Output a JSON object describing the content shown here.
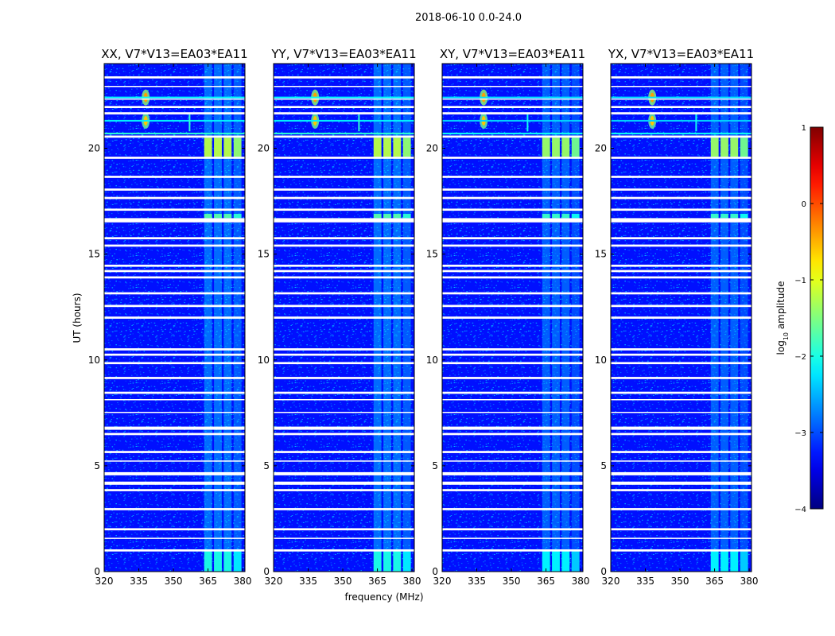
{
  "chart_data": {
    "type": "heatmap",
    "title": "2018-06-10 0.0-24.0",
    "xlabel": "frequency (MHz)",
    "ylabel": "UT (hours)",
    "xlim": [
      320,
      381
    ],
    "ylim": [
      0,
      24
    ],
    "xticks": [
      320,
      335,
      350,
      365,
      380
    ],
    "yticks": [
      0,
      5,
      10,
      15,
      20
    ],
    "colorbar": {
      "label": "log10 amplitude",
      "label_base": "log",
      "label_sub": "10",
      "label_rest": " amplitude",
      "range": [
        -4,
        1
      ],
      "ticks": [
        -4,
        -3,
        -2,
        -1,
        0,
        1
      ],
      "colormap": "jet"
    },
    "panels": [
      {
        "title": "XX, V7*V13=EA03*EA11"
      },
      {
        "title": "YY, V7*V13=EA03*EA11"
      },
      {
        "title": "XY, V7*V13=EA03*EA11"
      },
      {
        "title": "YX, V7*V13=EA03*EA11"
      }
    ],
    "flagged_ut_bands": [
      [
        0.95,
        1.05
      ],
      [
        1.55,
        1.6
      ],
      [
        1.95,
        2.05
      ],
      [
        2.9,
        3.0
      ],
      [
        3.8,
        3.9
      ],
      [
        4.1,
        4.25
      ],
      [
        4.55,
        4.7
      ],
      [
        5.2,
        5.25
      ],
      [
        5.6,
        5.7
      ],
      [
        6.45,
        6.55
      ],
      [
        6.7,
        6.85
      ],
      [
        7.5,
        7.55
      ],
      [
        8.1,
        8.15
      ],
      [
        8.4,
        8.5
      ],
      [
        9.1,
        9.2
      ],
      [
        9.8,
        9.9
      ],
      [
        10.2,
        10.3
      ],
      [
        10.45,
        10.55
      ],
      [
        11.95,
        12.05
      ],
      [
        12.5,
        12.6
      ],
      [
        13.1,
        13.2
      ],
      [
        13.85,
        13.95
      ],
      [
        14.15,
        14.25
      ],
      [
        14.4,
        14.5
      ],
      [
        15.35,
        15.45
      ],
      [
        15.7,
        15.8
      ],
      [
        16.5,
        16.7
      ],
      [
        17.05,
        17.15
      ],
      [
        17.6,
        17.7
      ],
      [
        18.0,
        18.1
      ],
      [
        18.6,
        18.7
      ],
      [
        19.5,
        19.6
      ],
      [
        20.5,
        20.6
      ],
      [
        21.6,
        21.7
      ],
      [
        21.9,
        22.0
      ],
      [
        22.3,
        22.35
      ],
      [
        22.9,
        22.95
      ],
      [
        23.3,
        23.4
      ]
    ],
    "features": [
      {
        "kind": "rfi_band",
        "freq_range": [
          363,
          380
        ],
        "ut_range": [
          0,
          24
        ],
        "level": -2.3
      },
      {
        "kind": "strong_rfi_block",
        "freq_range": [
          363,
          380
        ],
        "ut_range": [
          19.6,
          20.5
        ],
        "level": -1.2
      },
      {
        "kind": "rfi_block",
        "freq_range": [
          363,
          380
        ],
        "ut_range": [
          0,
          1.0
        ],
        "level": -2.0
      },
      {
        "kind": "rfi_block",
        "freq_range": [
          363,
          380
        ],
        "ut_range": [
          16.7,
          16.9
        ],
        "level": -1.7
      },
      {
        "kind": "rfi_spike",
        "freq": 338,
        "ut": 22.4,
        "level": -0.4
      },
      {
        "kind": "rfi_spike",
        "freq": 338,
        "ut": 21.3,
        "level": -0.6
      },
      {
        "kind": "rfi_line",
        "ut": 22.4,
        "level": -2.1
      },
      {
        "kind": "rfi_line",
        "ut": 21.3,
        "level": -2.2
      },
      {
        "kind": "rfi_line",
        "ut": 20.7,
        "level": -1.9
      },
      {
        "kind": "rfi_streak",
        "freq": 357,
        "ut_range": [
          20.8,
          21.6
        ],
        "level": -1.9
      }
    ]
  }
}
